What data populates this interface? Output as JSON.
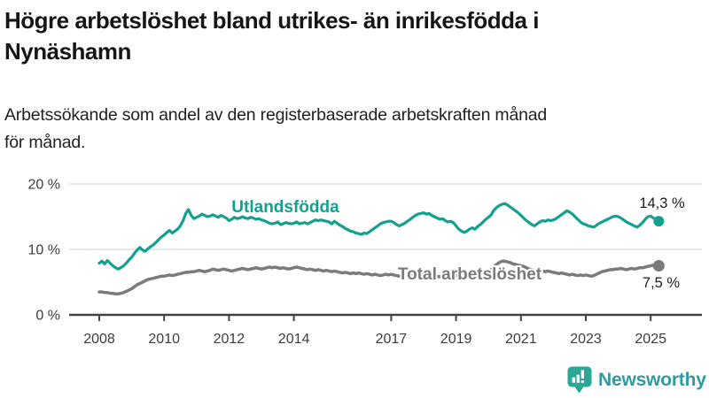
{
  "header": {
    "title_line1": "Högre arbetslöshet bland utrikes- än inrikesfödda i",
    "title_line2": "Nynäshamn",
    "subtitle_line1": "Arbetssökande som andel av den registerbaserade arbetskraften månad",
    "subtitle_line2": "för månad."
  },
  "chart_data": {
    "type": "line",
    "x_unit": "month",
    "x_range": "2008-01 to 2025-04",
    "x_tick_labels": [
      "2008",
      "2010",
      "2012",
      "2014",
      "2017",
      "2019",
      "2021",
      "2023",
      "2025"
    ],
    "x_tick_years": [
      2008,
      2010,
      2012,
      2014,
      2017,
      2019,
      2021,
      2023,
      2025
    ],
    "y_ticks": [
      {
        "label": "20 %",
        "value": 20
      },
      {
        "label": "10 %",
        "value": 10
      },
      {
        "label": "0 %",
        "value": 0
      }
    ],
    "ylim": [
      0,
      20
    ],
    "grid": "horizontal",
    "colors": {
      "grid": "#d9d9d9",
      "axis": "#424242",
      "axis_text": "#3c3c3c",
      "annotation_text": "#1d1d1d"
    },
    "series": [
      {
        "name": "Utlandsfödda",
        "color": "#14a08f",
        "end_label": "14,3 %",
        "end_value": 14.3,
        "values": [
          7.9,
          8.2,
          7.8,
          8.3,
          7.9,
          7.5,
          7.2,
          7.0,
          7.2,
          7.5,
          7.9,
          8.4,
          8.8,
          9.4,
          9.9,
          10.3,
          9.9,
          9.7,
          10.1,
          10.4,
          10.7,
          11.1,
          11.5,
          11.9,
          12.2,
          12.6,
          12.9,
          12.5,
          12.8,
          13.1,
          13.6,
          14.4,
          15.5,
          16.1,
          15.2,
          14.7,
          14.9,
          15.1,
          15.4,
          15.2,
          15.0,
          15.1,
          15.3,
          15.1,
          14.9,
          15.2,
          15.0,
          14.8,
          14.4,
          14.6,
          14.9,
          14.7,
          14.8,
          15.0,
          14.8,
          14.7,
          14.9,
          14.8,
          14.6,
          14.7,
          14.5,
          14.4,
          14.2,
          14.0,
          13.9,
          14.0,
          14.2,
          13.8,
          13.9,
          14.1,
          14.0,
          13.9,
          14.0,
          14.2,
          13.9,
          14.0,
          14.1,
          13.9,
          14.1,
          14.3,
          14.5,
          14.4,
          14.5,
          14.4,
          14.3,
          14.2,
          13.9,
          14.3,
          14.0,
          13.7,
          13.5,
          13.2,
          13.0,
          12.8,
          12.7,
          12.5,
          12.4,
          12.3,
          12.5,
          12.4,
          12.7,
          13.0,
          13.3,
          13.6,
          13.9,
          14.1,
          14.2,
          14.3,
          14.3,
          14.1,
          13.8,
          13.6,
          13.8,
          14.0,
          14.3,
          14.6,
          14.9,
          15.2,
          15.4,
          15.5,
          15.6,
          15.4,
          15.5,
          15.2,
          15.0,
          14.8,
          14.6,
          14.7,
          14.4,
          14.2,
          14.3,
          14.1,
          13.6,
          13.1,
          12.8,
          12.6,
          12.8,
          13.1,
          13.3,
          13.1,
          13.5,
          13.8,
          14.2,
          14.6,
          14.9,
          15.3,
          16.0,
          16.4,
          16.7,
          16.9,
          17.0,
          16.8,
          16.5,
          16.2,
          15.9,
          15.6,
          15.2,
          14.8,
          14.4,
          14.1,
          13.8,
          13.6,
          13.9,
          14.2,
          14.4,
          14.3,
          14.5,
          14.4,
          14.5,
          14.7,
          15.0,
          15.3,
          15.6,
          15.9,
          15.7,
          15.4,
          15.0,
          14.6,
          14.2,
          13.9,
          13.8,
          13.6,
          13.5,
          13.4,
          13.7,
          14.0,
          14.2,
          14.4,
          14.6,
          14.8,
          15.0,
          15.1,
          15.0,
          14.8,
          14.5,
          14.2,
          14.0,
          13.8,
          13.6,
          13.4,
          13.7,
          14.1,
          14.6,
          15.0,
          15.1,
          14.8,
          14.5,
          14.3
        ]
      },
      {
        "name": "Total arbetslöshet",
        "color": "#7b7b7b",
        "end_label": "7,5 %",
        "end_value": 7.5,
        "values": [
          3.5,
          3.5,
          3.4,
          3.4,
          3.3,
          3.3,
          3.2,
          3.2,
          3.3,
          3.4,
          3.6,
          3.8,
          4.0,
          4.3,
          4.6,
          4.8,
          5.0,
          5.2,
          5.4,
          5.5,
          5.6,
          5.7,
          5.8,
          5.9,
          5.9,
          6.0,
          6.1,
          6.0,
          6.1,
          6.2,
          6.3,
          6.4,
          6.5,
          6.5,
          6.6,
          6.6,
          6.7,
          6.8,
          6.7,
          6.6,
          6.7,
          6.8,
          7.0,
          6.9,
          6.8,
          6.9,
          7.0,
          6.9,
          6.8,
          6.7,
          6.8,
          6.9,
          7.0,
          7.1,
          7.0,
          6.9,
          7.0,
          7.1,
          7.2,
          7.1,
          7.0,
          7.1,
          7.2,
          7.3,
          7.2,
          7.3,
          7.2,
          7.1,
          7.2,
          7.1,
          7.0,
          7.1,
          7.2,
          7.3,
          7.2,
          7.1,
          7.0,
          6.9,
          7.0,
          6.9,
          6.8,
          6.9,
          6.8,
          6.7,
          6.8,
          6.7,
          6.6,
          6.7,
          6.6,
          6.5,
          6.4,
          6.5,
          6.4,
          6.3,
          6.4,
          6.3,
          6.4,
          6.3,
          6.2,
          6.3,
          6.2,
          6.1,
          6.2,
          6.1,
          6.0,
          6.1,
          6.2,
          6.1,
          6.2,
          6.1,
          6.0,
          5.9,
          6.0,
          6.1,
          6.0,
          6.1,
          6.2,
          6.1,
          6.0,
          6.1,
          6.0,
          6.1,
          6.0,
          5.9,
          6.0,
          5.9,
          5.8,
          5.9,
          6.0,
          5.9,
          6.0,
          6.1,
          6.0,
          5.9,
          6.0,
          6.1,
          6.2,
          6.1,
          6.2,
          6.3,
          6.2,
          6.3,
          6.4,
          6.5,
          6.6,
          6.9,
          7.3,
          7.7,
          8.0,
          8.2,
          8.2,
          8.1,
          8.0,
          7.8,
          7.7,
          7.6,
          7.5,
          7.4,
          7.2,
          7.0,
          6.9,
          6.8,
          6.9,
          6.8,
          6.7,
          6.6,
          6.7,
          6.6,
          6.5,
          6.4,
          6.3,
          6.4,
          6.3,
          6.2,
          6.1,
          6.2,
          6.1,
          6.0,
          6.1,
          6.0,
          6.1,
          6.0,
          5.9,
          6.0,
          6.2,
          6.4,
          6.6,
          6.7,
          6.8,
          6.9,
          6.9,
          7.0,
          7.0,
          7.1,
          7.0,
          6.9,
          7.0,
          7.1,
          7.0,
          7.1,
          7.2,
          7.2,
          7.3,
          7.4,
          7.5,
          7.6,
          7.5,
          7.5
        ]
      }
    ]
  },
  "footer": {
    "brand": "Newsworthy",
    "brand_color": "#2f9aa0",
    "icon": "newsworthy-bars-icon",
    "icon_color": "#2aa795"
  }
}
